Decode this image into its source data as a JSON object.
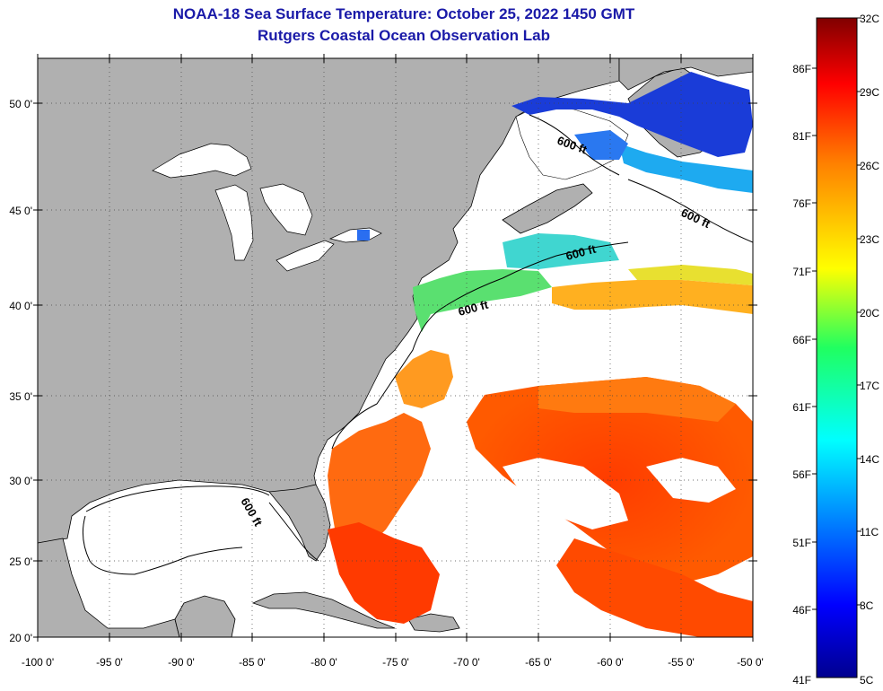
{
  "title_line1": "NOAA-18 Sea Surface Temperature:  October 25, 2022 1450 GMT",
  "title_line2": "Rutgers Coastal Ocean Observation Lab",
  "x_ticks": [
    "-100 0'",
    "-95 0'",
    "-90 0'",
    "-85 0'",
    "-80 0'",
    "-75 0'",
    "-70 0'",
    "-65 0'",
    "-60 0'",
    "-55 0'",
    "-50 0'"
  ],
  "y_ticks": [
    "50 0'",
    "45 0'",
    "40 0'",
    "35 0'",
    "30 0'",
    "25 0'",
    "20 0'"
  ],
  "contour_labels": [
    "600 ft",
    "600 ft",
    "600 ft",
    "600 ft",
    "600 ft"
  ],
  "colorbar": {
    "celsius": [
      "32C",
      "29C",
      "26C",
      "23C",
      "20C",
      "17C",
      "14C",
      "11C",
      "8C",
      "5C"
    ],
    "fahrenheit": [
      "86F",
      "81F",
      "76F",
      "71F",
      "66F",
      "61F",
      "56F",
      "51F",
      "46F",
      "41F"
    ]
  },
  "colors": {
    "land": "#b0b0b0",
    "cloud_mask": "#ffffff",
    "title": "#1a1aa8"
  }
}
